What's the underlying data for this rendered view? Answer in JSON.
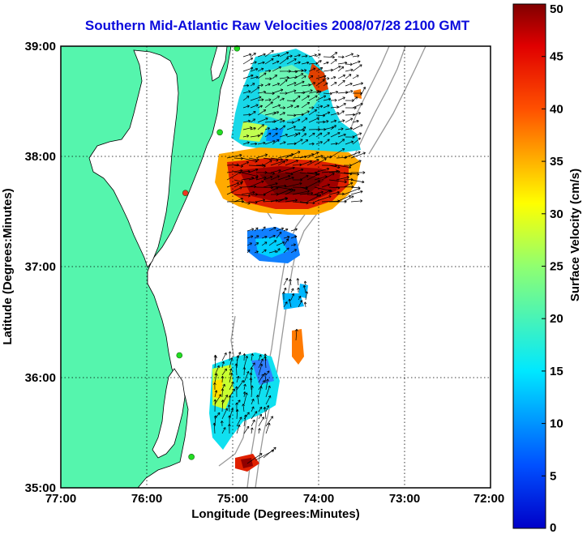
{
  "title": "Southern Mid-Atlantic Raw Velocities 2008/07/28 2100 GMT",
  "xaxis": {
    "label": "Longitude (Degrees:Minutes)",
    "ticks": [
      "77:00",
      "76:00",
      "75:00",
      "74:00",
      "73:00",
      "72:00"
    ],
    "range": [
      -77,
      -72
    ]
  },
  "yaxis": {
    "label": "Latitude (Degrees:Minutes)",
    "ticks": [
      "39:00",
      "38:00",
      "37:00",
      "36:00",
      "35:00"
    ],
    "range": [
      35,
      39
    ]
  },
  "colorbar": {
    "label": "Surface Velocity (cm/s)",
    "ticks": [
      "50",
      "45",
      "40",
      "35",
      "30",
      "25",
      "20",
      "15",
      "10",
      "5",
      "0"
    ],
    "range": [
      0,
      50
    ]
  },
  "colors": {
    "land": "#55f5ad",
    "title": "#0a0adc",
    "station": "#22dd22",
    "station_highlight": "#ee3322",
    "bathymetry": "#999999"
  },
  "stations": [
    {
      "lon": -74.95,
      "lat": 38.98,
      "status": "active"
    },
    {
      "lon": -75.15,
      "lat": 38.22,
      "status": "active"
    },
    {
      "lon": -75.55,
      "lat": 37.67,
      "status": "highlight"
    },
    {
      "lon": -75.62,
      "lat": 36.2,
      "status": "active"
    },
    {
      "lon": -75.48,
      "lat": 35.28,
      "status": "active"
    }
  ],
  "velocity_regions": [
    {
      "name": "delaware-shelf",
      "lon": [
        -75.1,
        -74.1
      ],
      "lat": [
        38.0,
        38.9
      ],
      "speed_cm_s": 14
    },
    {
      "name": "fast-jet",
      "lon": [
        -75.2,
        -73.8
      ],
      "lat": [
        37.55,
        37.95
      ],
      "speed_cm_s": 46
    },
    {
      "name": "jet-fringe",
      "lon": [
        -75.25,
        -73.55
      ],
      "lat": [
        37.9,
        38.1
      ],
      "speed_cm_s": 28
    },
    {
      "name": "chesapeake-mouth",
      "lon": [
        -75.0,
        -74.55
      ],
      "lat": [
        37.05,
        37.35
      ],
      "speed_cm_s": 8
    },
    {
      "name": "small-patch",
      "lon": [
        -74.6,
        -74.35
      ],
      "lat": [
        36.65,
        36.8
      ],
      "speed_cm_s": 9
    },
    {
      "name": "outer-banks",
      "lon": [
        -75.3,
        -74.5
      ],
      "lat": [
        35.55,
        36.4
      ],
      "speed_cm_s": 16
    },
    {
      "name": "hatteras-patch",
      "lon": [
        -75.0,
        -74.8
      ],
      "lat": [
        35.2,
        35.3
      ],
      "speed_cm_s": 45
    },
    {
      "name": "east-spot",
      "lon": [
        -74.25,
        -74.1
      ],
      "lat": [
        36.25,
        36.45
      ],
      "speed_cm_s": 36
    }
  ]
}
